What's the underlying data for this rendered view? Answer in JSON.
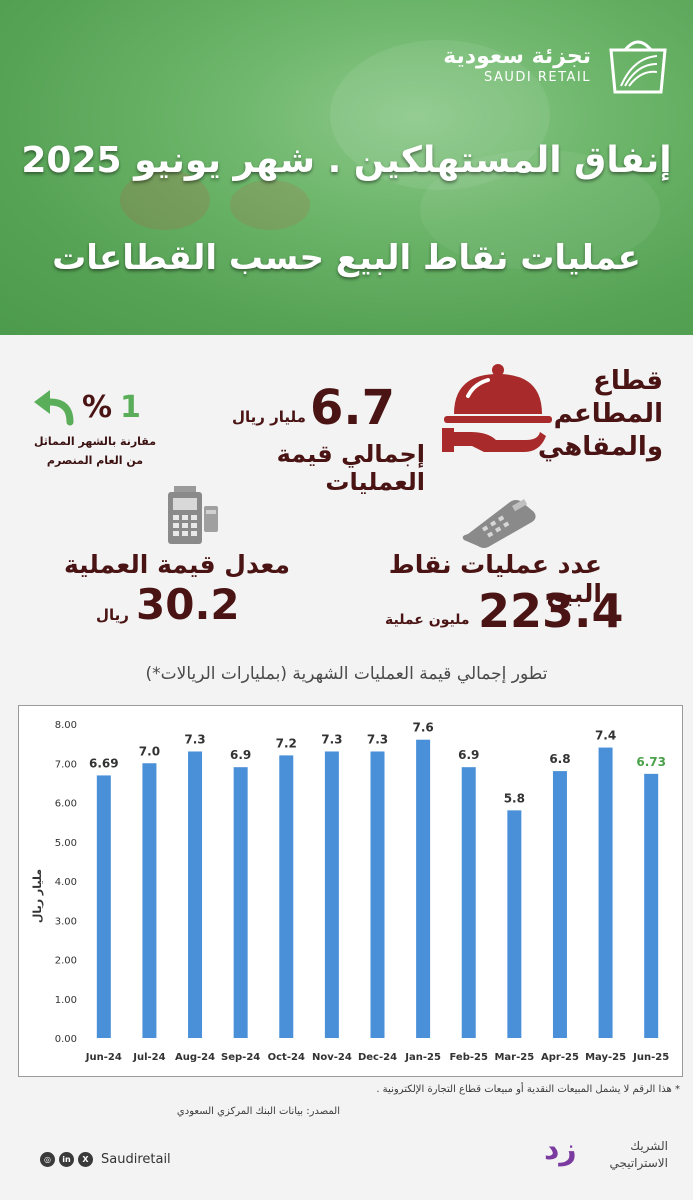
{
  "header": {
    "logo_ar": "تجزئة سعودية",
    "logo_en": "SAUDI RETAIL",
    "title_line1": "إنفاق المستهلكين . شهر يونيو 2025",
    "title_line2": "عمليات نقاط البيع حسب القطاعات"
  },
  "sector": {
    "title": "قطاع المطاعم والمقاهي",
    "icon": "cloche-icon"
  },
  "kpis": {
    "total_value": "6.7",
    "total_unit": "مليار ريال",
    "total_label": "إجمالي قيمة العمليات",
    "change_sign": "%",
    "change_number": "1",
    "change_note_1": "مقارنة بالشهر المماثل",
    "change_note_2": "من العام المنصرم",
    "avg_label": "معدل قيمة العملية",
    "avg_value": "30.2",
    "avg_unit": "ريال",
    "count_label": "عدد عمليات نقاط البيع",
    "count_value": "223.4",
    "count_unit": "مليون عملية"
  },
  "colors": {
    "bar": "#4a90d9",
    "highlight_label": "#4aa14a",
    "dark_text": "#4a1414"
  },
  "chart_data": {
    "type": "bar",
    "title": "تطور إجمالي قيمة العمليات الشهرية (بمليارات الريالات*)",
    "ylabel": "مليار ريال",
    "xlabel": "",
    "ylim": [
      0,
      8
    ],
    "yticks": [
      "0.00",
      "1.00",
      "2.00",
      "3.00",
      "4.00",
      "5.00",
      "6.00",
      "7.00",
      "8.00"
    ],
    "grid": false,
    "categories": [
      "Jun-24",
      "Jul-24",
      "Aug-24",
      "Sep-24",
      "Oct-24",
      "Nov-24",
      "Dec-24",
      "Jan-25",
      "Feb-25",
      "Mar-25",
      "Apr-25",
      "May-25",
      "Jun-25"
    ],
    "values": [
      6.69,
      7.0,
      7.3,
      6.9,
      7.2,
      7.3,
      7.3,
      7.6,
      6.9,
      5.8,
      6.8,
      7.4,
      6.73
    ],
    "labels": [
      "6.69",
      "7.0",
      "7.3",
      "6.9",
      "7.2",
      "7.3",
      "7.3",
      "7.6",
      "6.9",
      "5.8",
      "6.8",
      "7.4",
      "6.73"
    ]
  },
  "footer": {
    "footnote": "* هذا الرقم لا يشمل المبيعات النقدية أو مبيعات  قطاع التجارة الإلكترونية .",
    "source": "المصدر: بيانات البنك المركزي السعودي",
    "partner_line1": "الشريك",
    "partner_line2": "الاستراتيجي",
    "partner_mark": "زد",
    "handle": "Saudiretail",
    "social_icons": [
      "x-icon",
      "linkedin-icon",
      "globe-icon"
    ]
  }
}
